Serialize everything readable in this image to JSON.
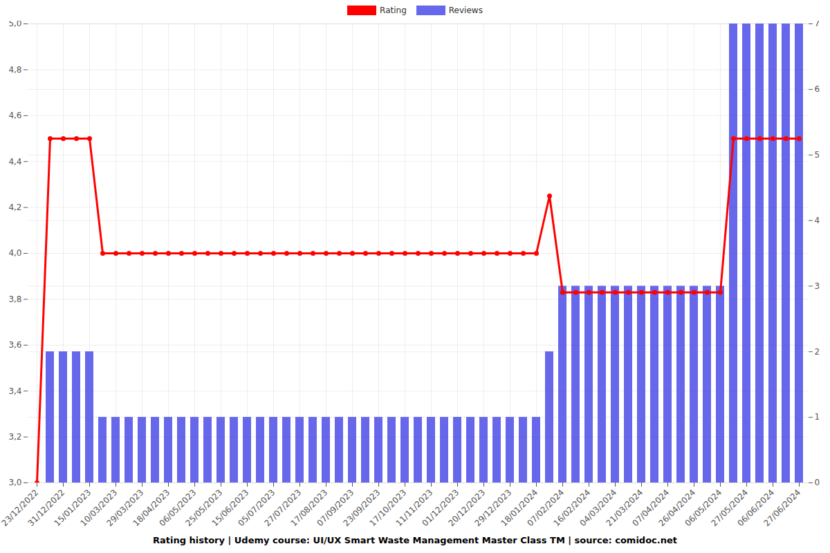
{
  "chart_data": {
    "type": "bar",
    "title": "Rating history | Udemy course: UI/UX Smart Waste Management Master Class TM | source: comidoc.net",
    "categories": [
      "23/12/2022",
      null,
      "31/12/2022",
      null,
      "15/01/2023",
      null,
      "10/03/2023",
      null,
      "29/03/2023",
      null,
      "18/04/2023",
      null,
      "06/05/2023",
      null,
      "25/05/2023",
      null,
      "15/06/2023",
      null,
      "05/07/2023",
      null,
      "27/07/2023",
      null,
      "17/08/2023",
      null,
      "07/09/2023",
      null,
      "23/09/2023",
      null,
      "17/10/2023",
      null,
      "11/11/2023",
      null,
      "01/12/2023",
      null,
      "20/12/2023",
      null,
      "29/12/2023",
      null,
      "18/01/2024",
      null,
      "07/02/2024",
      null,
      "16/02/2024",
      null,
      "04/03/2024",
      null,
      "21/03/2024",
      null,
      "07/04/2024",
      null,
      "26/04/2024",
      null,
      "06/05/2024",
      null,
      "27/05/2024",
      null,
      "06/06/2024",
      null,
      "27/06/2024"
    ],
    "series": [
      {
        "name": "Rating",
        "type": "line",
        "color": "#ff0000",
        "marker": "circle",
        "values": [
          3.0,
          4.5,
          4.5,
          4.5,
          4.5,
          4.0,
          4.0,
          4.0,
          4.0,
          4.0,
          4.0,
          4.0,
          4.0,
          4.0,
          4.0,
          4.0,
          4.0,
          4.0,
          4.0,
          4.0,
          4.0,
          4.0,
          4.0,
          4.0,
          4.0,
          4.0,
          4.0,
          4.0,
          4.0,
          4.0,
          4.0,
          4.0,
          4.0,
          4.0,
          4.0,
          4.0,
          4.0,
          4.0,
          4.0,
          4.25,
          3.83,
          3.83,
          3.83,
          3.83,
          3.83,
          3.83,
          3.83,
          3.83,
          3.83,
          3.83,
          3.83,
          3.83,
          3.83,
          4.5,
          4.5,
          4.5,
          4.5,
          4.5,
          4.5
        ]
      },
      {
        "name": "Reviews",
        "type": "bar",
        "color": "#6767ec",
        "axis": "y2",
        "values": [
          0,
          2,
          2,
          2,
          2,
          1,
          1,
          1,
          1,
          1,
          1,
          1,
          1,
          1,
          1,
          1,
          1,
          1,
          1,
          1,
          1,
          1,
          1,
          1,
          1,
          1,
          1,
          1,
          1,
          1,
          1,
          1,
          1,
          1,
          1,
          1,
          1,
          1,
          1,
          2,
          3,
          3,
          3,
          3,
          3,
          3,
          3,
          3,
          3,
          3,
          3,
          3,
          3,
          7,
          7,
          7,
          7,
          7,
          7
        ]
      }
    ],
    "ylim": [
      3.0,
      5.0
    ],
    "yticks": [
      {
        "value": 3.0,
        "label": "3,0"
      },
      {
        "value": 3.2,
        "label": "3,2"
      },
      {
        "value": 3.4,
        "label": "3,4"
      },
      {
        "value": 3.6,
        "label": "3,6"
      },
      {
        "value": 3.8,
        "label": "3,8"
      },
      {
        "value": 4.0,
        "label": "4,0"
      },
      {
        "value": 4.2,
        "label": "4,2"
      },
      {
        "value": 4.4,
        "label": "4,4"
      },
      {
        "value": 4.6,
        "label": "4,6"
      },
      {
        "value": 4.8,
        "label": "4,8"
      },
      {
        "value": 5.0,
        "label": "5,0"
      }
    ],
    "y2lim": [
      0,
      7
    ],
    "y2ticks": [
      0,
      1,
      2,
      3,
      4,
      5,
      6,
      7
    ],
    "grid": true,
    "legend": "top"
  }
}
